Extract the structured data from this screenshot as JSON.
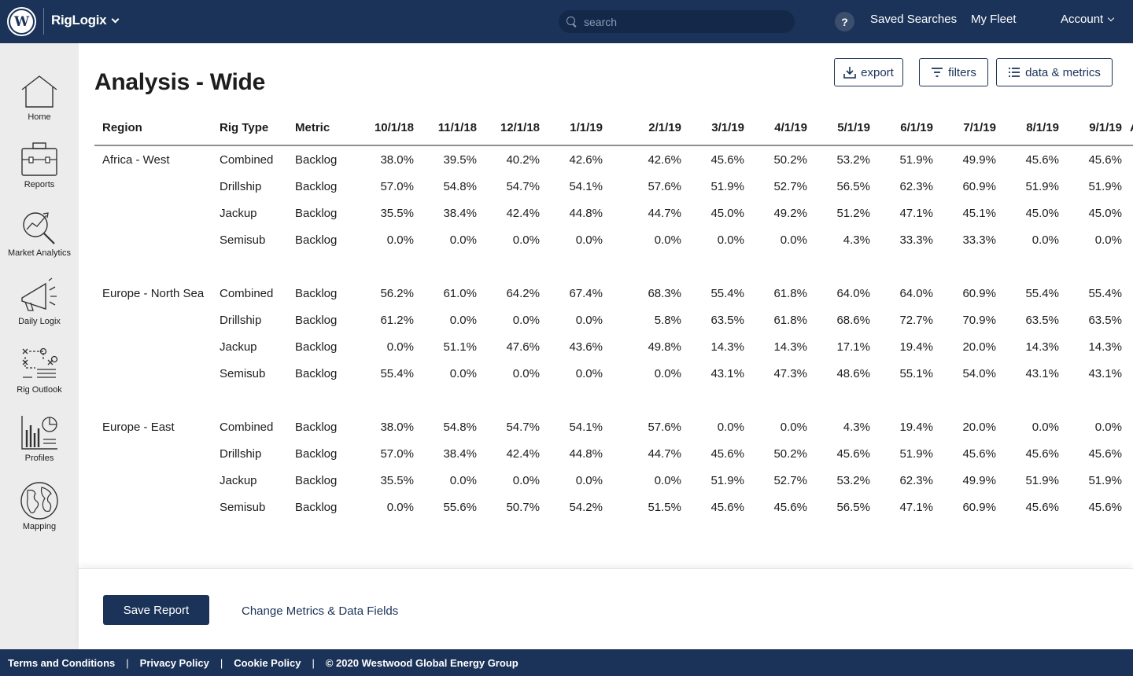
{
  "header": {
    "logo_letter": "W",
    "brand": "RigLogix",
    "search_placeholder": "search",
    "help": "?",
    "saved_searches": "Saved Searches",
    "my_fleet": "My Fleet",
    "account": "Account"
  },
  "sidebar": {
    "items": [
      {
        "label": "Home",
        "icon": "home-icon"
      },
      {
        "label": "Reports",
        "icon": "briefcase-icon"
      },
      {
        "label": "Market Analytics",
        "icon": "analytics-icon"
      },
      {
        "label": "Daily Logix",
        "icon": "megaphone-icon"
      },
      {
        "label": "Rig Outlook",
        "icon": "strategy-icon"
      },
      {
        "label": "Profiles",
        "icon": "bar-chart-icon"
      },
      {
        "label": "Mapping",
        "icon": "globe-icon"
      }
    ]
  },
  "page": {
    "title": "Analysis - Wide"
  },
  "toolbar": {
    "export": "export",
    "filters": "filters",
    "data_metrics": "data & metrics"
  },
  "table": {
    "columns": [
      "Region",
      "Rig Type",
      "Metric",
      "10/1/18",
      "11/1/18",
      "12/1/18",
      "1/1/19",
      "2/1/19",
      "3/1/19",
      "4/1/19",
      "5/1/19",
      "6/1/19",
      "7/1/19",
      "8/1/19",
      "9/1/19",
      "A"
    ],
    "groups": [
      {
        "region": "Africa - West",
        "rows": [
          {
            "rig": "Combined",
            "metric": "Backlog",
            "values": [
              "38.0%",
              "39.5%",
              "40.2%",
              "42.6%",
              "42.6%",
              "45.6%",
              "50.2%",
              "53.2%",
              "51.9%",
              "49.9%",
              "45.6%",
              "45.6%"
            ]
          },
          {
            "rig": "Drillship",
            "metric": "Backlog",
            "values": [
              "57.0%",
              "54.8%",
              "54.7%",
              "54.1%",
              "57.6%",
              "51.9%",
              "52.7%",
              "56.5%",
              "62.3%",
              "60.9%",
              "51.9%",
              "51.9%"
            ]
          },
          {
            "rig": "Jackup",
            "metric": "Backlog",
            "values": [
              "35.5%",
              "38.4%",
              "42.4%",
              "44.8%",
              "44.7%",
              "45.0%",
              "49.2%",
              "51.2%",
              "47.1%",
              "45.1%",
              "45.0%",
              "45.0%"
            ]
          },
          {
            "rig": "Semisub",
            "metric": "Backlog",
            "values": [
              "0.0%",
              "0.0%",
              "0.0%",
              "0.0%",
              "0.0%",
              "0.0%",
              "0.0%",
              "4.3%",
              "33.3%",
              "33.3%",
              "0.0%",
              "0.0%"
            ]
          }
        ]
      },
      {
        "region": "Europe - North Sea",
        "rows": [
          {
            "rig": "Combined",
            "metric": "Backlog",
            "values": [
              "56.2%",
              "61.0%",
              "64.2%",
              "67.4%",
              "68.3%",
              "55.4%",
              "61.8%",
              "64.0%",
              "64.0%",
              "60.9%",
              "55.4%",
              "55.4%"
            ]
          },
          {
            "rig": "Drillship",
            "metric": "Backlog",
            "values": [
              "61.2%",
              "0.0%",
              "0.0%",
              "0.0%",
              "5.8%",
              "63.5%",
              "61.8%",
              "68.6%",
              "72.7%",
              "70.9%",
              "63.5%",
              "63.5%"
            ]
          },
          {
            "rig": "Jackup",
            "metric": "Backlog",
            "values": [
              "0.0%",
              "51.1%",
              "47.6%",
              "43.6%",
              "49.8%",
              "14.3%",
              "14.3%",
              "17.1%",
              "19.4%",
              "20.0%",
              "14.3%",
              "14.3%"
            ]
          },
          {
            "rig": "Semisub",
            "metric": "Backlog",
            "values": [
              "55.4%",
              "0.0%",
              "0.0%",
              "0.0%",
              "0.0%",
              "43.1%",
              "47.3%",
              "48.6%",
              "55.1%",
              "54.0%",
              "43.1%",
              "43.1%"
            ]
          }
        ]
      },
      {
        "region": "Europe - East",
        "rows": [
          {
            "rig": "Combined",
            "metric": "Backlog",
            "values": [
              "38.0%",
              "54.8%",
              "54.7%",
              "54.1%",
              "57.6%",
              "0.0%",
              "0.0%",
              "4.3%",
              "19.4%",
              "20.0%",
              "0.0%",
              "0.0%"
            ]
          },
          {
            "rig": "Drillship",
            "metric": "Backlog",
            "values": [
              "57.0%",
              "38.4%",
              "42.4%",
              "44.8%",
              "44.7%",
              "45.6%",
              "50.2%",
              "45.6%",
              "51.9%",
              "45.6%",
              "45.6%",
              "45.6%"
            ]
          },
          {
            "rig": "Jackup",
            "metric": "Backlog",
            "values": [
              "35.5%",
              "0.0%",
              "0.0%",
              "0.0%",
              "0.0%",
              "51.9%",
              "52.7%",
              "53.2%",
              "62.3%",
              "49.9%",
              "51.9%",
              "51.9%"
            ]
          },
          {
            "rig": "Semisub",
            "metric": "Backlog",
            "values": [
              "0.0%",
              "55.6%",
              "50.7%",
              "54.2%",
              "51.5%",
              "45.6%",
              "45.6%",
              "56.5%",
              "47.1%",
              "60.9%",
              "45.6%",
              "45.6%"
            ]
          }
        ]
      }
    ]
  },
  "bottom": {
    "save_report": "Save Report",
    "change_metrics": "Change Metrics & Data Fields"
  },
  "footer": {
    "terms": "Terms and Conditions",
    "privacy": "Privacy Policy",
    "cookie": "Cookie Policy",
    "copyright": "© 2020 Westwood Global Energy Group",
    "separator": "|"
  },
  "colors": {
    "navy": "#1b3358",
    "sidebar_bg": "#ececec"
  }
}
